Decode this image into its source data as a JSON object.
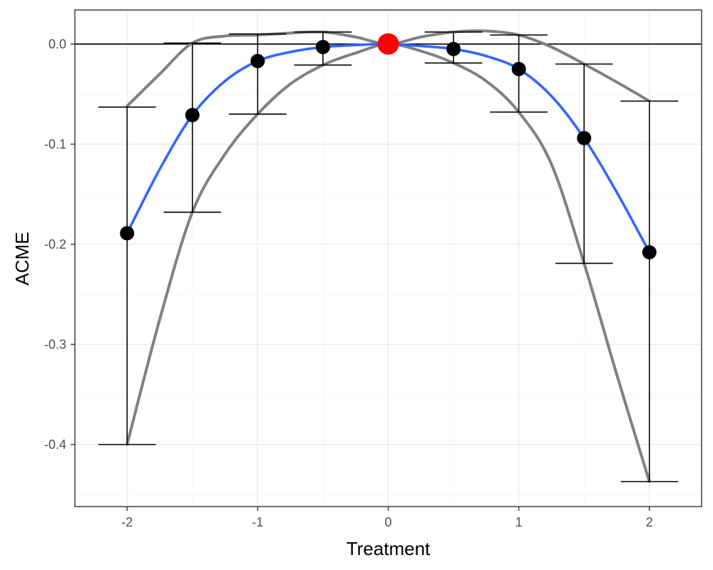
{
  "chart_data": {
    "type": "scatter",
    "title": "",
    "xlabel": "Treatment",
    "ylabel": "ACME",
    "xlim": [
      -2.4,
      2.4
    ],
    "ylim": [
      -0.462,
      0.034
    ],
    "x_ticks": [
      -2,
      -1,
      0,
      1,
      2
    ],
    "x_tick_labels": [
      "-2",
      "-1",
      "0",
      "1",
      "2"
    ],
    "y_ticks": [
      0.0,
      -0.1,
      -0.2,
      -0.3,
      -0.4
    ],
    "y_tick_labels": [
      "0.0",
      "-0.1",
      "-0.2",
      "-0.3",
      "-0.4"
    ],
    "grid": true,
    "reference_line_y": 0,
    "points": [
      {
        "x": -2.0,
        "y": -0.189,
        "lower": -0.4,
        "upper": -0.063
      },
      {
        "x": -1.5,
        "y": -0.071,
        "lower": -0.168,
        "upper": 0.001
      },
      {
        "x": -1.0,
        "y": -0.017,
        "lower": -0.07,
        "upper": 0.01
      },
      {
        "x": -0.5,
        "y": -0.003,
        "lower": -0.021,
        "upper": 0.012
      },
      {
        "x": 0.0,
        "y": 0.0,
        "highlight": true
      },
      {
        "x": 0.5,
        "y": -0.005,
        "lower": -0.019,
        "upper": 0.012
      },
      {
        "x": 1.0,
        "y": -0.025,
        "lower": -0.068,
        "upper": 0.009
      },
      {
        "x": 1.5,
        "y": -0.094,
        "lower": -0.219,
        "upper": -0.02
      },
      {
        "x": 2.0,
        "y": -0.208,
        "lower": -0.437,
        "upper": -0.057
      }
    ],
    "fit_curve": {
      "x": [
        -2.0,
        -1.75,
        -1.5,
        -1.25,
        -1.0,
        -0.75,
        -0.5,
        -0.25,
        0.0,
        0.25,
        0.5,
        0.75,
        1.0,
        1.25,
        1.5,
        1.75,
        2.0
      ],
      "y": [
        -0.189,
        -0.125,
        -0.071,
        -0.037,
        -0.017,
        -0.008,
        -0.003,
        -0.001,
        0.0,
        -0.002,
        -0.005,
        -0.012,
        -0.025,
        -0.052,
        -0.094,
        -0.148,
        -0.208
      ]
    },
    "ci_upper_curve": {
      "x": [
        -2.0,
        -1.75,
        -1.5,
        -1.25,
        -1.0,
        -0.75,
        -0.5,
        -0.25,
        0.0,
        0.25,
        0.5,
        0.75,
        1.0,
        1.25,
        1.5,
        1.75,
        2.0
      ],
      "y": [
        -0.062,
        -0.03,
        0.001,
        0.008,
        0.009,
        0.011,
        0.012,
        0.007,
        0.0,
        0.007,
        0.012,
        0.013,
        0.009,
        -0.003,
        -0.02,
        -0.038,
        -0.057
      ]
    },
    "ci_lower_curve": {
      "x": [
        -2.0,
        -1.75,
        -1.5,
        -1.25,
        -1.0,
        -0.75,
        -0.5,
        -0.25,
        0.0,
        0.25,
        0.5,
        0.75,
        1.0,
        1.25,
        1.5,
        1.75,
        2.0
      ],
      "y": [
        -0.4,
        -0.275,
        -0.168,
        -0.11,
        -0.07,
        -0.04,
        -0.021,
        -0.009,
        0.0,
        -0.007,
        -0.019,
        -0.037,
        -0.068,
        -0.12,
        -0.219,
        -0.33,
        -0.437
      ]
    },
    "colors": {
      "points": "#000000",
      "highlight_point": "#ff0000",
      "fit_line": "#3366ff",
      "ci_lines": "#808080",
      "error_bars": "#000000",
      "reference_line": "#000000",
      "major_grid": "#ebebeb",
      "minor_grid": "#f5f5f5",
      "panel_border": "#333333"
    }
  }
}
